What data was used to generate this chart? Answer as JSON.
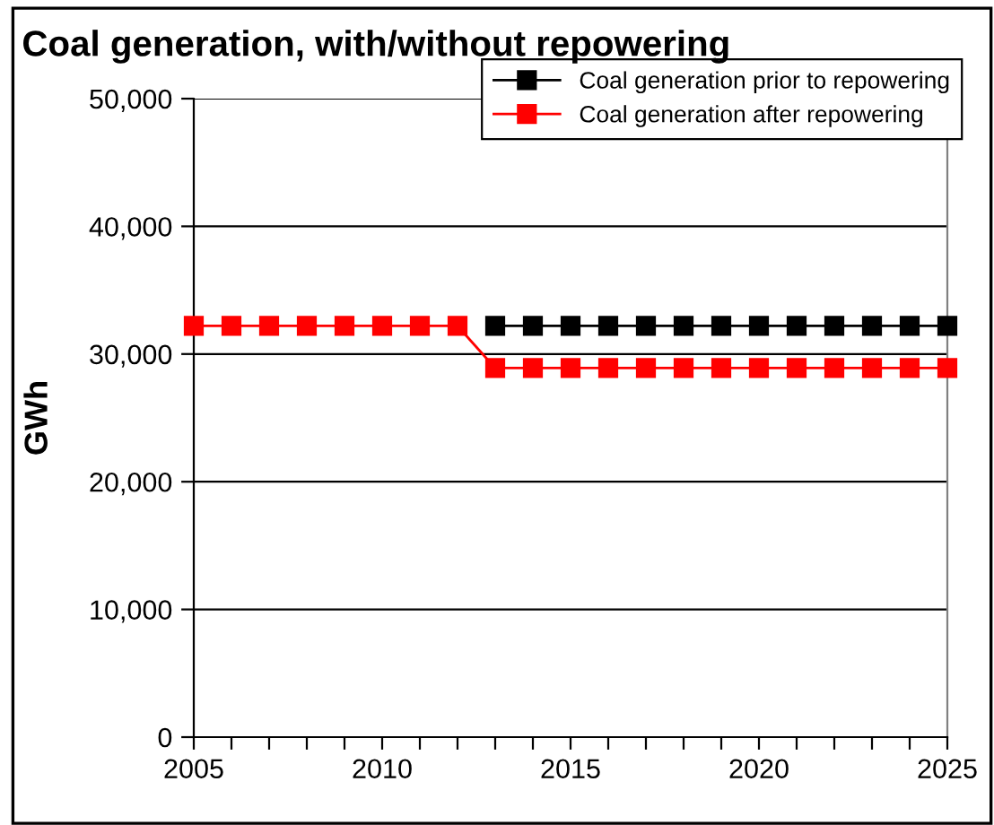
{
  "chart_data": {
    "type": "line",
    "title": "Coal generation, with/without repowering",
    "ylabel": "GWh",
    "x": [
      2005,
      2006,
      2007,
      2008,
      2009,
      2010,
      2011,
      2012,
      2013,
      2014,
      2015,
      2016,
      2017,
      2018,
      2019,
      2020,
      2021,
      2022,
      2023,
      2024,
      2025
    ],
    "series": [
      {
        "name": "Coal generation prior to repowering",
        "color": "#000000",
        "values": [
          null,
          null,
          null,
          null,
          null,
          null,
          null,
          null,
          32200,
          32200,
          32200,
          32200,
          32200,
          32200,
          32200,
          32200,
          32200,
          32200,
          32200,
          32200,
          32200
        ]
      },
      {
        "name": "Coal generation after repowering",
        "color": "#ff0000",
        "values": [
          32200,
          32200,
          32200,
          32200,
          32200,
          32200,
          32200,
          32200,
          28900,
          28900,
          28900,
          28900,
          28900,
          28900,
          28900,
          28900,
          28900,
          28900,
          28900,
          28900,
          28900
        ]
      }
    ],
    "xlim": [
      2005,
      2025
    ],
    "xticks": [
      2005,
      {
        "value": 2006,
        "label": null
      },
      {
        "value": 2007,
        "label": null
      },
      {
        "value": 2008,
        "label": null
      },
      {
        "value": 2009,
        "label": null
      },
      2010,
      {
        "value": 2011,
        "label": null
      },
      {
        "value": 2012,
        "label": null
      },
      {
        "value": 2013,
        "label": null
      },
      {
        "value": 2014,
        "label": null
      },
      2015,
      {
        "value": 2016,
        "label": null
      },
      {
        "value": 2017,
        "label": null
      },
      {
        "value": 2018,
        "label": null
      },
      {
        "value": 2019,
        "label": null
      },
      2020,
      {
        "value": 2021,
        "label": null
      },
      {
        "value": 2022,
        "label": null
      },
      {
        "value": 2023,
        "label": null
      },
      {
        "value": 2024,
        "label": null
      },
      2025
    ],
    "ylim": [
      0,
      50000
    ],
    "yticks": [
      {
        "value": 0,
        "label": "0"
      },
      {
        "value": 10000,
        "label": "10,000"
      },
      {
        "value": 20000,
        "label": "20,000"
      },
      {
        "value": 30000,
        "label": "30,000"
      },
      {
        "value": 40000,
        "label": "40,000"
      },
      {
        "value": 50000,
        "label": "50,000"
      }
    ],
    "grid": "y",
    "legend": "top right",
    "marker": "square",
    "line_style": "solid"
  }
}
